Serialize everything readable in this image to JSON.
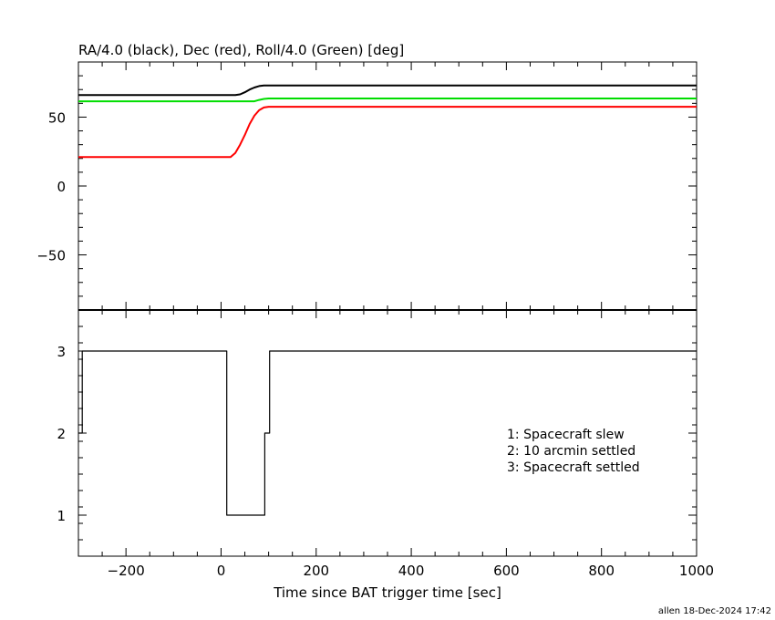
{
  "title": "RA/4.0 (black), Dec (red), Roll/4.0 (Green) [deg]",
  "xlabel": "Time since BAT trigger time [sec]",
  "footer": "allen 18-Dec-2024 17:42",
  "colors": {
    "ra": "#000000",
    "dec": "#ff0000",
    "roll": "#00dd00",
    "frame": "#000000"
  },
  "chart_data": [
    {
      "type": "line",
      "title": "RA/4.0 (black), Dec (red), Roll/4.0 (Green) [deg]",
      "xlabel": "",
      "ylabel": "",
      "xlim": [
        -300,
        1000
      ],
      "ylim": [
        -90,
        90
      ],
      "x_ticks": [
        -200,
        0,
        200,
        400,
        600,
        800,
        1000
      ],
      "y_ticks": [
        -50,
        0,
        50
      ],
      "grid": false,
      "series": [
        {
          "color": "#000000",
          "x": [
            -300,
            30,
            40,
            50,
            60,
            70,
            80,
            90,
            100,
            1000
          ],
          "y": [
            66,
            66,
            66.5,
            68,
            70,
            71.5,
            72.5,
            73,
            73,
            73
          ]
        },
        {
          "color": "#ff0000",
          "x": [
            -300,
            20,
            30,
            40,
            50,
            60,
            70,
            80,
            90,
            100,
            1000
          ],
          "y": [
            21,
            21,
            24,
            30,
            37,
            45,
            51,
            55,
            57,
            57.5,
            57.5
          ]
        },
        {
          "color": "#00dd00",
          "x": [
            -300,
            70,
            80,
            90,
            100,
            1000
          ],
          "y": [
            61.5,
            61.5,
            62.5,
            63.2,
            63.5,
            63.5
          ]
        }
      ]
    },
    {
      "type": "line",
      "title": "",
      "xlabel": "Time since BAT trigger time [sec]",
      "ylabel": "",
      "xlim": [
        -300,
        1000
      ],
      "ylim": [
        0.5,
        3.5
      ],
      "x_ticks": [
        -200,
        0,
        200,
        400,
        600,
        800,
        1000
      ],
      "y_ticks": [
        1,
        2,
        3
      ],
      "grid": false,
      "legend": [
        "1: Spacecraft slew",
        "2: 10 arcmin settled",
        "3: Spacecraft settled"
      ],
      "series": [
        {
          "color": "#000000",
          "step": true,
          "x": [
            -300,
            -292,
            12,
            92,
            102,
            1000
          ],
          "y": [
            2,
            3,
            1,
            2,
            3,
            3
          ]
        }
      ]
    }
  ]
}
